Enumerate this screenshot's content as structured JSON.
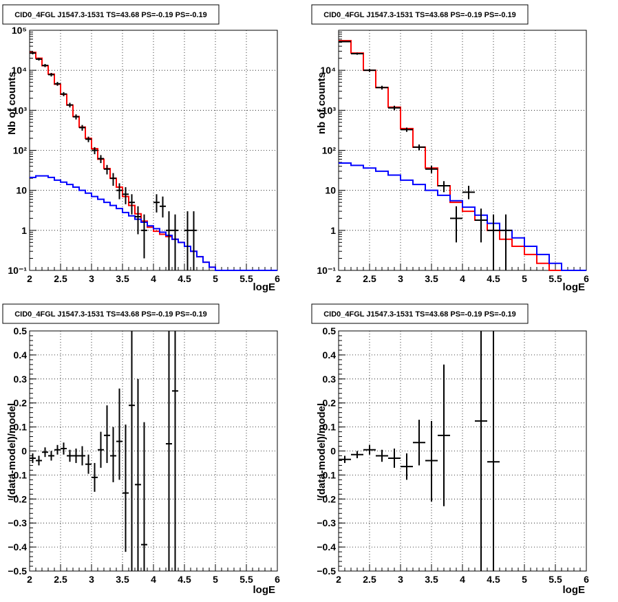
{
  "colors": {
    "data": "#000000",
    "total_model": "#ff0000",
    "background_model": "#0000ff",
    "grid": "#000000"
  },
  "chart_data": [
    {
      "type": "histogram",
      "title": "CID0_4FGL J1547.3-1531 TS=43.68 PS=-0.19 PS=-0.19",
      "xlabel": "logE",
      "ylabel": "Nb of counts",
      "yscale": "log",
      "xlim": [
        2,
        6
      ],
      "ylim": [
        0.1,
        100000
      ],
      "xticks": [
        "2",
        "2.5",
        "3",
        "3.5",
        "4",
        "4.5",
        "5",
        "5.5",
        "6"
      ],
      "yticks": [
        "10⁻¹",
        "1",
        "10",
        "10²",
        "10³",
        "10⁴",
        "10⁵"
      ],
      "grid": true,
      "bin_edges": [
        2.0,
        2.1,
        2.2,
        2.3,
        2.4,
        2.5,
        2.6,
        2.7,
        2.8,
        2.9,
        3.0,
        3.1,
        3.2,
        3.3,
        3.4,
        3.5,
        3.6,
        3.7,
        3.8,
        3.9,
        4.0,
        4.1,
        4.2,
        4.3,
        4.4,
        4.5,
        4.6,
        4.7,
        4.8,
        4.9,
        5.0,
        5.1,
        5.2,
        5.3,
        5.4,
        5.5,
        5.6,
        5.7,
        5.8,
        5.9,
        6.0
      ],
      "series": [
        {
          "role": "total_model",
          "values": [
            28000,
            20000,
            13000,
            8000,
            4500,
            2500,
            1350,
            700,
            380,
            200,
            110,
            60,
            35,
            20,
            12,
            7,
            4.2,
            2.6,
            1.7,
            1.2,
            0.95,
            0.8,
            0.7,
            0.6,
            0.5,
            0.4,
            0.3,
            0.22,
            0.16,
            0.12,
            0.1,
            0.1,
            0.1,
            0.1,
            0.1,
            0.1,
            0.1,
            0.1,
            0.1,
            0.1
          ]
        },
        {
          "role": "background_model",
          "values": [
            21,
            23,
            23,
            21,
            18,
            16,
            14,
            12,
            10,
            8.5,
            7,
            6,
            5,
            4.2,
            3.5,
            2.8,
            2.3,
            1.9,
            1.6,
            1.3,
            1.1,
            0.9,
            0.75,
            0.6,
            0.5,
            0.4,
            0.3,
            0.22,
            0.16,
            0.12,
            0.1,
            0.1,
            0.1,
            0.1,
            0.1,
            0.1,
            0.1,
            0.1,
            0.1,
            0.1
          ]
        },
        {
          "role": "data",
          "points": [
            {
              "x": 2.05,
              "y": 27000,
              "lo": 25000,
              "hi": 29000
            },
            {
              "x": 2.15,
              "y": 19000,
              "lo": 17500,
              "hi": 20500
            },
            {
              "x": 2.25,
              "y": 13200,
              "lo": 12000,
              "hi": 14400
            },
            {
              "x": 2.35,
              "y": 7800,
              "lo": 7000,
              "hi": 8600
            },
            {
              "x": 2.45,
              "y": 4600,
              "lo": 4100,
              "hi": 5100
            },
            {
              "x": 2.55,
              "y": 2550,
              "lo": 2250,
              "hi": 2850
            },
            {
              "x": 2.65,
              "y": 1360,
              "lo": 1180,
              "hi": 1540
            },
            {
              "x": 2.75,
              "y": 690,
              "lo": 590,
              "hi": 790
            },
            {
              "x": 2.85,
              "y": 370,
              "lo": 310,
              "hi": 430
            },
            {
              "x": 2.95,
              "y": 190,
              "lo": 160,
              "hi": 220
            },
            {
              "x": 3.05,
              "y": 100,
              "lo": 80,
              "hi": 120
            },
            {
              "x": 3.15,
              "y": 62,
              "lo": 48,
              "hi": 76
            },
            {
              "x": 3.25,
              "y": 34,
              "lo": 25,
              "hi": 43
            },
            {
              "x": 3.35,
              "y": 20,
              "lo": 13,
              "hi": 27
            },
            {
              "x": 3.45,
              "y": 10,
              "lo": 6,
              "hi": 15
            },
            {
              "x": 3.55,
              "y": 8,
              "lo": 4.5,
              "hi": 12
            },
            {
              "x": 3.65,
              "y": 5,
              "lo": 2.5,
              "hi": 8
            },
            {
              "x": 3.75,
              "y": 2.2,
              "lo": 0.8,
              "hi": 4
            },
            {
              "x": 3.85,
              "y": 1.0,
              "lo": 0.2,
              "hi": 2.5
            },
            {
              "x": 4.05,
              "y": 5,
              "lo": 2.8,
              "hi": 8
            },
            {
              "x": 4.15,
              "y": 4,
              "lo": 2.1,
              "hi": 7
            },
            {
              "x": 4.25,
              "y": 1,
              "lo": 0.1,
              "hi": 3
            },
            {
              "x": 4.35,
              "y": 1,
              "lo": 0.1,
              "hi": 2.5
            },
            {
              "x": 4.55,
              "y": 1,
              "lo": 0.1,
              "hi": 3
            },
            {
              "x": 4.65,
              "y": 1,
              "lo": 0.1,
              "hi": 3
            }
          ]
        }
      ]
    },
    {
      "type": "histogram",
      "title": "CID0_4FGL J1547.3-1531 TS=43.68 PS=-0.19 PS=-0.19",
      "xlabel": "logE",
      "ylabel": "nb of counts",
      "yscale": "log",
      "xlim": [
        2,
        6
      ],
      "ylim": [
        0.1,
        100000
      ],
      "xticks": [
        "2",
        "2.5",
        "3",
        "3.5",
        "4",
        "4.5",
        "5",
        "5.5",
        "6"
      ],
      "yticks": [
        "10⁻¹",
        "1",
        "10",
        "10²",
        "10³",
        "10⁴"
      ],
      "grid": true,
      "bin_edges": [
        2.0,
        2.2,
        2.4,
        2.6,
        2.8,
        3.0,
        3.2,
        3.4,
        3.6,
        3.8,
        4.0,
        4.2,
        4.4,
        4.6,
        4.8,
        5.0,
        5.2,
        5.4,
        5.6,
        5.8,
        6.0
      ],
      "series": [
        {
          "role": "total_model",
          "values": [
            55000,
            27000,
            10000,
            3700,
            1200,
            350,
            120,
            36,
            13,
            5,
            3,
            1.8,
            1.0,
            0.6,
            0.4,
            0.25,
            0.15,
            0.1,
            0.1,
            0.1
          ]
        },
        {
          "role": "background_model",
          "values": [
            48,
            42,
            36,
            30,
            24,
            18,
            14,
            10,
            7.5,
            5.5,
            3.8,
            2.4,
            1.5,
            1.0,
            0.65,
            0.4,
            0.25,
            0.15,
            0.1,
            0.1
          ]
        },
        {
          "role": "data",
          "points": [
            {
              "x": 2.1,
              "y": 52000,
              "lo": 50000,
              "hi": 54000
            },
            {
              "x": 2.3,
              "y": 26000,
              "lo": 24500,
              "hi": 27500
            },
            {
              "x": 2.5,
              "y": 10000,
              "lo": 9200,
              "hi": 10800
            },
            {
              "x": 2.7,
              "y": 3700,
              "lo": 3300,
              "hi": 4100
            },
            {
              "x": 2.9,
              "y": 1150,
              "lo": 1000,
              "hi": 1300
            },
            {
              "x": 3.1,
              "y": 330,
              "lo": 290,
              "hi": 370
            },
            {
              "x": 3.3,
              "y": 120,
              "lo": 100,
              "hi": 140
            },
            {
              "x": 3.5,
              "y": 34,
              "lo": 27,
              "hi": 41
            },
            {
              "x": 3.7,
              "y": 13,
              "lo": 9,
              "hi": 17
            },
            {
              "x": 3.9,
              "y": 2,
              "lo": 0.5,
              "hi": 4
            },
            {
              "x": 4.1,
              "y": 9,
              "lo": 6,
              "hi": 13
            },
            {
              "x": 4.3,
              "y": 1.8,
              "lo": 0.5,
              "hi": 3.5
            },
            {
              "x": 4.5,
              "y": 1,
              "lo": 0.1,
              "hi": 2.5
            },
            {
              "x": 4.7,
              "y": 1,
              "lo": 0.1,
              "hi": 2.5
            }
          ]
        }
      ]
    },
    {
      "type": "scatter",
      "title": "CID0_4FGL J1547.3-1531 TS=43.68 PS=-0.19 PS=-0.19",
      "xlabel": "logE",
      "ylabel": "(data-model)/model",
      "yscale": "linear",
      "xlim": [
        2,
        6
      ],
      "ylim": [
        -0.5,
        0.5
      ],
      "xticks": [
        "2",
        "2.5",
        "3",
        "3.5",
        "4",
        "4.5",
        "5",
        "5.5",
        "6"
      ],
      "yticks": [
        "−0.5",
        "−0.4",
        "−0.3",
        "−0.2",
        "−0.1",
        "0",
        "0.1",
        "0.2",
        "0.3",
        "0.4",
        "0.5"
      ],
      "grid": true,
      "xhalfwidth": 0.05,
      "points": [
        {
          "x": 2.05,
          "y": -0.03,
          "lo": -0.05,
          "hi": -0.01
        },
        {
          "x": 2.15,
          "y": -0.04,
          "lo": -0.06,
          "hi": -0.02
        },
        {
          "x": 2.25,
          "y": -0.005,
          "lo": -0.025,
          "hi": 0.015
        },
        {
          "x": 2.35,
          "y": -0.02,
          "lo": -0.04,
          "hi": 0.0
        },
        {
          "x": 2.45,
          "y": 0.005,
          "lo": -0.015,
          "hi": 0.025
        },
        {
          "x": 2.55,
          "y": 0.01,
          "lo": -0.015,
          "hi": 0.035
        },
        {
          "x": 2.65,
          "y": -0.02,
          "lo": -0.045,
          "hi": 0.005
        },
        {
          "x": 2.75,
          "y": -0.02,
          "lo": -0.05,
          "hi": 0.01
        },
        {
          "x": 2.85,
          "y": -0.02,
          "lo": -0.06,
          "hi": 0.02
        },
        {
          "x": 2.95,
          "y": -0.055,
          "lo": -0.095,
          "hi": -0.015
        },
        {
          "x": 3.05,
          "y": -0.11,
          "lo": -0.17,
          "hi": -0.05
        },
        {
          "x": 3.15,
          "y": 0.005,
          "lo": -0.07,
          "hi": 0.08
        },
        {
          "x": 3.25,
          "y": 0.065,
          "lo": -0.05,
          "hi": 0.19
        },
        {
          "x": 3.35,
          "y": -0.02,
          "lo": -0.13,
          "hi": 0.1
        },
        {
          "x": 3.45,
          "y": 0.04,
          "lo": -0.12,
          "hi": 0.26
        },
        {
          "x": 3.55,
          "y": -0.175,
          "lo": -0.42,
          "hi": 0.11
        },
        {
          "x": 3.65,
          "y": 0.19,
          "lo": -0.5,
          "hi": 0.5
        },
        {
          "x": 3.75,
          "y": -0.14,
          "lo": -0.5,
          "hi": 0.3
        },
        {
          "x": 3.85,
          "y": -0.39,
          "lo": -0.5,
          "hi": 0.12
        },
        {
          "x": 4.25,
          "y": 0.03,
          "lo": -0.5,
          "hi": 0.5
        },
        {
          "x": 4.35,
          "y": 0.25,
          "lo": -0.5,
          "hi": 0.5
        }
      ]
    },
    {
      "type": "scatter",
      "title": "CID0_4FGL J1547.3-1531 TS=43.68 PS=-0.19 PS=-0.19",
      "xlabel": "logE",
      "ylabel": "(data-model)/model",
      "yscale": "linear",
      "xlim": [
        2,
        6
      ],
      "ylim": [
        -0.5,
        0.5
      ],
      "xticks": [
        "2",
        "2.5",
        "3",
        "3.5",
        "4",
        "4.5",
        "5",
        "5.5",
        "6"
      ],
      "yticks": [
        "−0.5",
        "−0.4",
        "−0.3",
        "−0.2",
        "−0.1",
        "0",
        "0.1",
        "0.2",
        "0.3",
        "0.4",
        "0.5"
      ],
      "grid": true,
      "xhalfwidth": 0.1,
      "points": [
        {
          "x": 2.1,
          "y": -0.035,
          "lo": -0.05,
          "hi": -0.02
        },
        {
          "x": 2.3,
          "y": -0.015,
          "lo": -0.03,
          "hi": 0.0
        },
        {
          "x": 2.5,
          "y": 0.005,
          "lo": -0.015,
          "hi": 0.025
        },
        {
          "x": 2.7,
          "y": -0.02,
          "lo": -0.045,
          "hi": 0.005
        },
        {
          "x": 2.9,
          "y": -0.03,
          "lo": -0.07,
          "hi": 0.01
        },
        {
          "x": 3.1,
          "y": -0.065,
          "lo": -0.12,
          "hi": -0.01
        },
        {
          "x": 3.3,
          "y": 0.035,
          "lo": -0.06,
          "hi": 0.13
        },
        {
          "x": 3.5,
          "y": -0.04,
          "lo": -0.21,
          "hi": 0.125
        },
        {
          "x": 3.7,
          "y": 0.065,
          "lo": -0.23,
          "hi": 0.36
        },
        {
          "x": 4.3,
          "y": 0.125,
          "lo": -0.5,
          "hi": 0.5
        },
        {
          "x": 4.5,
          "y": -0.045,
          "lo": -0.5,
          "hi": 0.5
        }
      ]
    }
  ]
}
